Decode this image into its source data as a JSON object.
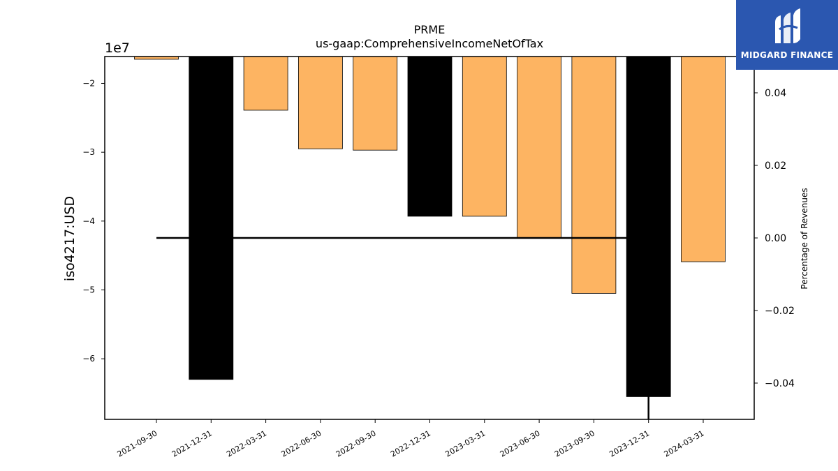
{
  "chart_data": {
    "type": "bar",
    "title": "PRME",
    "subtitle": "us-gaap:ComprehensiveIncomeNetOfTax",
    "ylabel": "iso4217:USD",
    "y2label": "Percentage of Revenues",
    "y_multiplier_label": "1e7",
    "categories": [
      "2021-09-30",
      "2021-12-31",
      "2022-03-31",
      "2022-06-30",
      "2022-09-30",
      "2022-12-31",
      "2023-03-31",
      "2023-06-30",
      "2023-09-30",
      "2023-12-31",
      "2024-03-31"
    ],
    "values": [
      -16500000,
      -63000000,
      -23900000,
      -29500000,
      -29700000,
      -39300000,
      -39300000,
      -42500000,
      -50500000,
      -65500000,
      -45900000
    ],
    "bar_colors": [
      "#fdb462",
      "#000000",
      "#fdb462",
      "#fdb462",
      "#fdb462",
      "#000000",
      "#fdb462",
      "#fdb462",
      "#fdb462",
      "#000000",
      "#fdb462"
    ],
    "ylim": [
      -68800000,
      -16100000
    ],
    "yticks": [
      -2,
      -3,
      -4,
      -5,
      -6
    ],
    "y2lim": [
      -0.05,
      0.05
    ],
    "y2ticks": [
      0.04,
      0.02,
      0.0,
      -0.02,
      -0.04
    ],
    "y2tick_labels": [
      "0.04",
      "0.02",
      "0.00",
      "−0.02",
      "−0.04"
    ],
    "percentage_line": {
      "x": [
        "2021-09-30",
        "2021-12-31",
        "2022-03-31",
        "2022-06-30",
        "2022-09-30",
        "2022-12-31",
        "2023-03-31",
        "2023-06-30",
        "2023-09-30",
        "2023-12-31"
      ],
      "values": [
        0,
        0,
        0,
        0,
        0,
        0,
        0,
        0,
        0,
        0
      ],
      "drop_to": -0.05,
      "color": "#000000"
    }
  },
  "logo": {
    "text": "MIDGARD FINANCE",
    "bg_color": "#2b57b0"
  }
}
